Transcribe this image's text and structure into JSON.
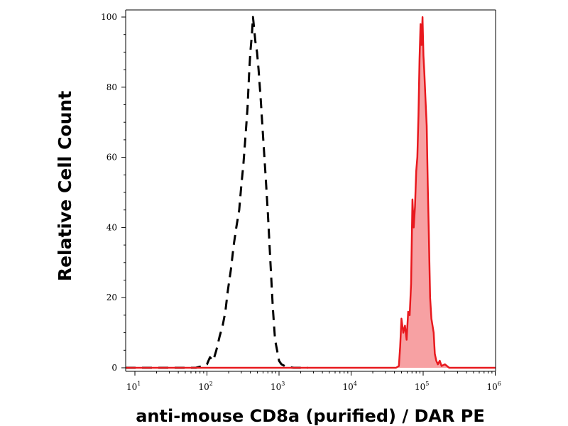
{
  "chart_data": {
    "type": "area",
    "title": "",
    "xlabel": "anti-mouse CD8a (purified) / DAR PE",
    "ylabel": "Relative Cell Count",
    "x_scale": "log",
    "xlim": [
      10,
      1000000
    ],
    "ylim": [
      0,
      100
    ],
    "x_ticks": [
      {
        "base": "10",
        "exp": "1",
        "value": 10
      },
      {
        "base": "10",
        "exp": "2",
        "value": 100
      },
      {
        "base": "10",
        "exp": "3",
        "value": 1000
      },
      {
        "base": "10",
        "exp": "4",
        "value": 10000
      },
      {
        "base": "10",
        "exp": "5",
        "value": 100000
      },
      {
        "base": "10",
        "exp": "6",
        "value": 1000000
      }
    ],
    "y_ticks": [
      "0",
      "20",
      "40",
      "60",
      "80",
      "100"
    ],
    "grid": false,
    "legend": "none",
    "series": [
      {
        "style": "dashed",
        "color": "#000000",
        "fill": "none",
        "points": [
          [
            7,
            0
          ],
          [
            50,
            0
          ],
          [
            70,
            0
          ],
          [
            80,
            0.3
          ],
          [
            88,
            0.5
          ],
          [
            100,
            1
          ],
          [
            110,
            3
          ],
          [
            122,
            2
          ],
          [
            135,
            5
          ],
          [
            150,
            9
          ],
          [
            165,
            12
          ],
          [
            180,
            16
          ],
          [
            195,
            22
          ],
          [
            215,
            28
          ],
          [
            235,
            35
          ],
          [
            255,
            40
          ],
          [
            280,
            45
          ],
          [
            300,
            52
          ],
          [
            320,
            58
          ],
          [
            340,
            65
          ],
          [
            365,
            74
          ],
          [
            385,
            84
          ],
          [
            400,
            90
          ],
          [
            420,
            95
          ],
          [
            435,
            100
          ],
          [
            450,
            97
          ],
          [
            470,
            93
          ],
          [
            495,
            90
          ],
          [
            520,
            85
          ],
          [
            560,
            76
          ],
          [
            600,
            66
          ],
          [
            650,
            55
          ],
          [
            700,
            44
          ],
          [
            760,
            30
          ],
          [
            820,
            17
          ],
          [
            880,
            8
          ],
          [
            920,
            6
          ],
          [
            960,
            4
          ],
          [
            1000,
            2
          ],
          [
            1080,
            1
          ],
          [
            1200,
            0.5
          ],
          [
            1350,
            0.2
          ],
          [
            1600,
            0
          ],
          [
            2500,
            0
          ]
        ]
      },
      {
        "style": "solid",
        "color": "#e8191e",
        "fill": "#f7a1a3",
        "points": [
          [
            7,
            0
          ],
          [
            10000,
            0
          ],
          [
            30000,
            0
          ],
          [
            42000,
            0
          ],
          [
            46000,
            0.5
          ],
          [
            48000,
            6
          ],
          [
            50000,
            14
          ],
          [
            53000,
            10
          ],
          [
            56000,
            12
          ],
          [
            59000,
            8
          ],
          [
            62000,
            16
          ],
          [
            65000,
            15
          ],
          [
            68000,
            24
          ],
          [
            71000,
            48
          ],
          [
            74000,
            40
          ],
          [
            77000,
            46
          ],
          [
            80000,
            56
          ],
          [
            83000,
            60
          ],
          [
            86000,
            72
          ],
          [
            89000,
            88
          ],
          [
            92000,
            98
          ],
          [
            95000,
            92
          ],
          [
            98000,
            100
          ],
          [
            101000,
            89
          ],
          [
            104000,
            84
          ],
          [
            108000,
            76
          ],
          [
            112000,
            69
          ],
          [
            116000,
            52
          ],
          [
            120000,
            38
          ],
          [
            125000,
            20
          ],
          [
            130000,
            14
          ],
          [
            135000,
            12
          ],
          [
            140000,
            10
          ],
          [
            145000,
            4
          ],
          [
            152000,
            2
          ],
          [
            160000,
            1
          ],
          [
            170000,
            2
          ],
          [
            180000,
            0.5
          ],
          [
            200000,
            1
          ],
          [
            230000,
            0
          ],
          [
            300000,
            0
          ],
          [
            1000000,
            0
          ],
          [
            1200000,
            0
          ]
        ]
      }
    ]
  }
}
